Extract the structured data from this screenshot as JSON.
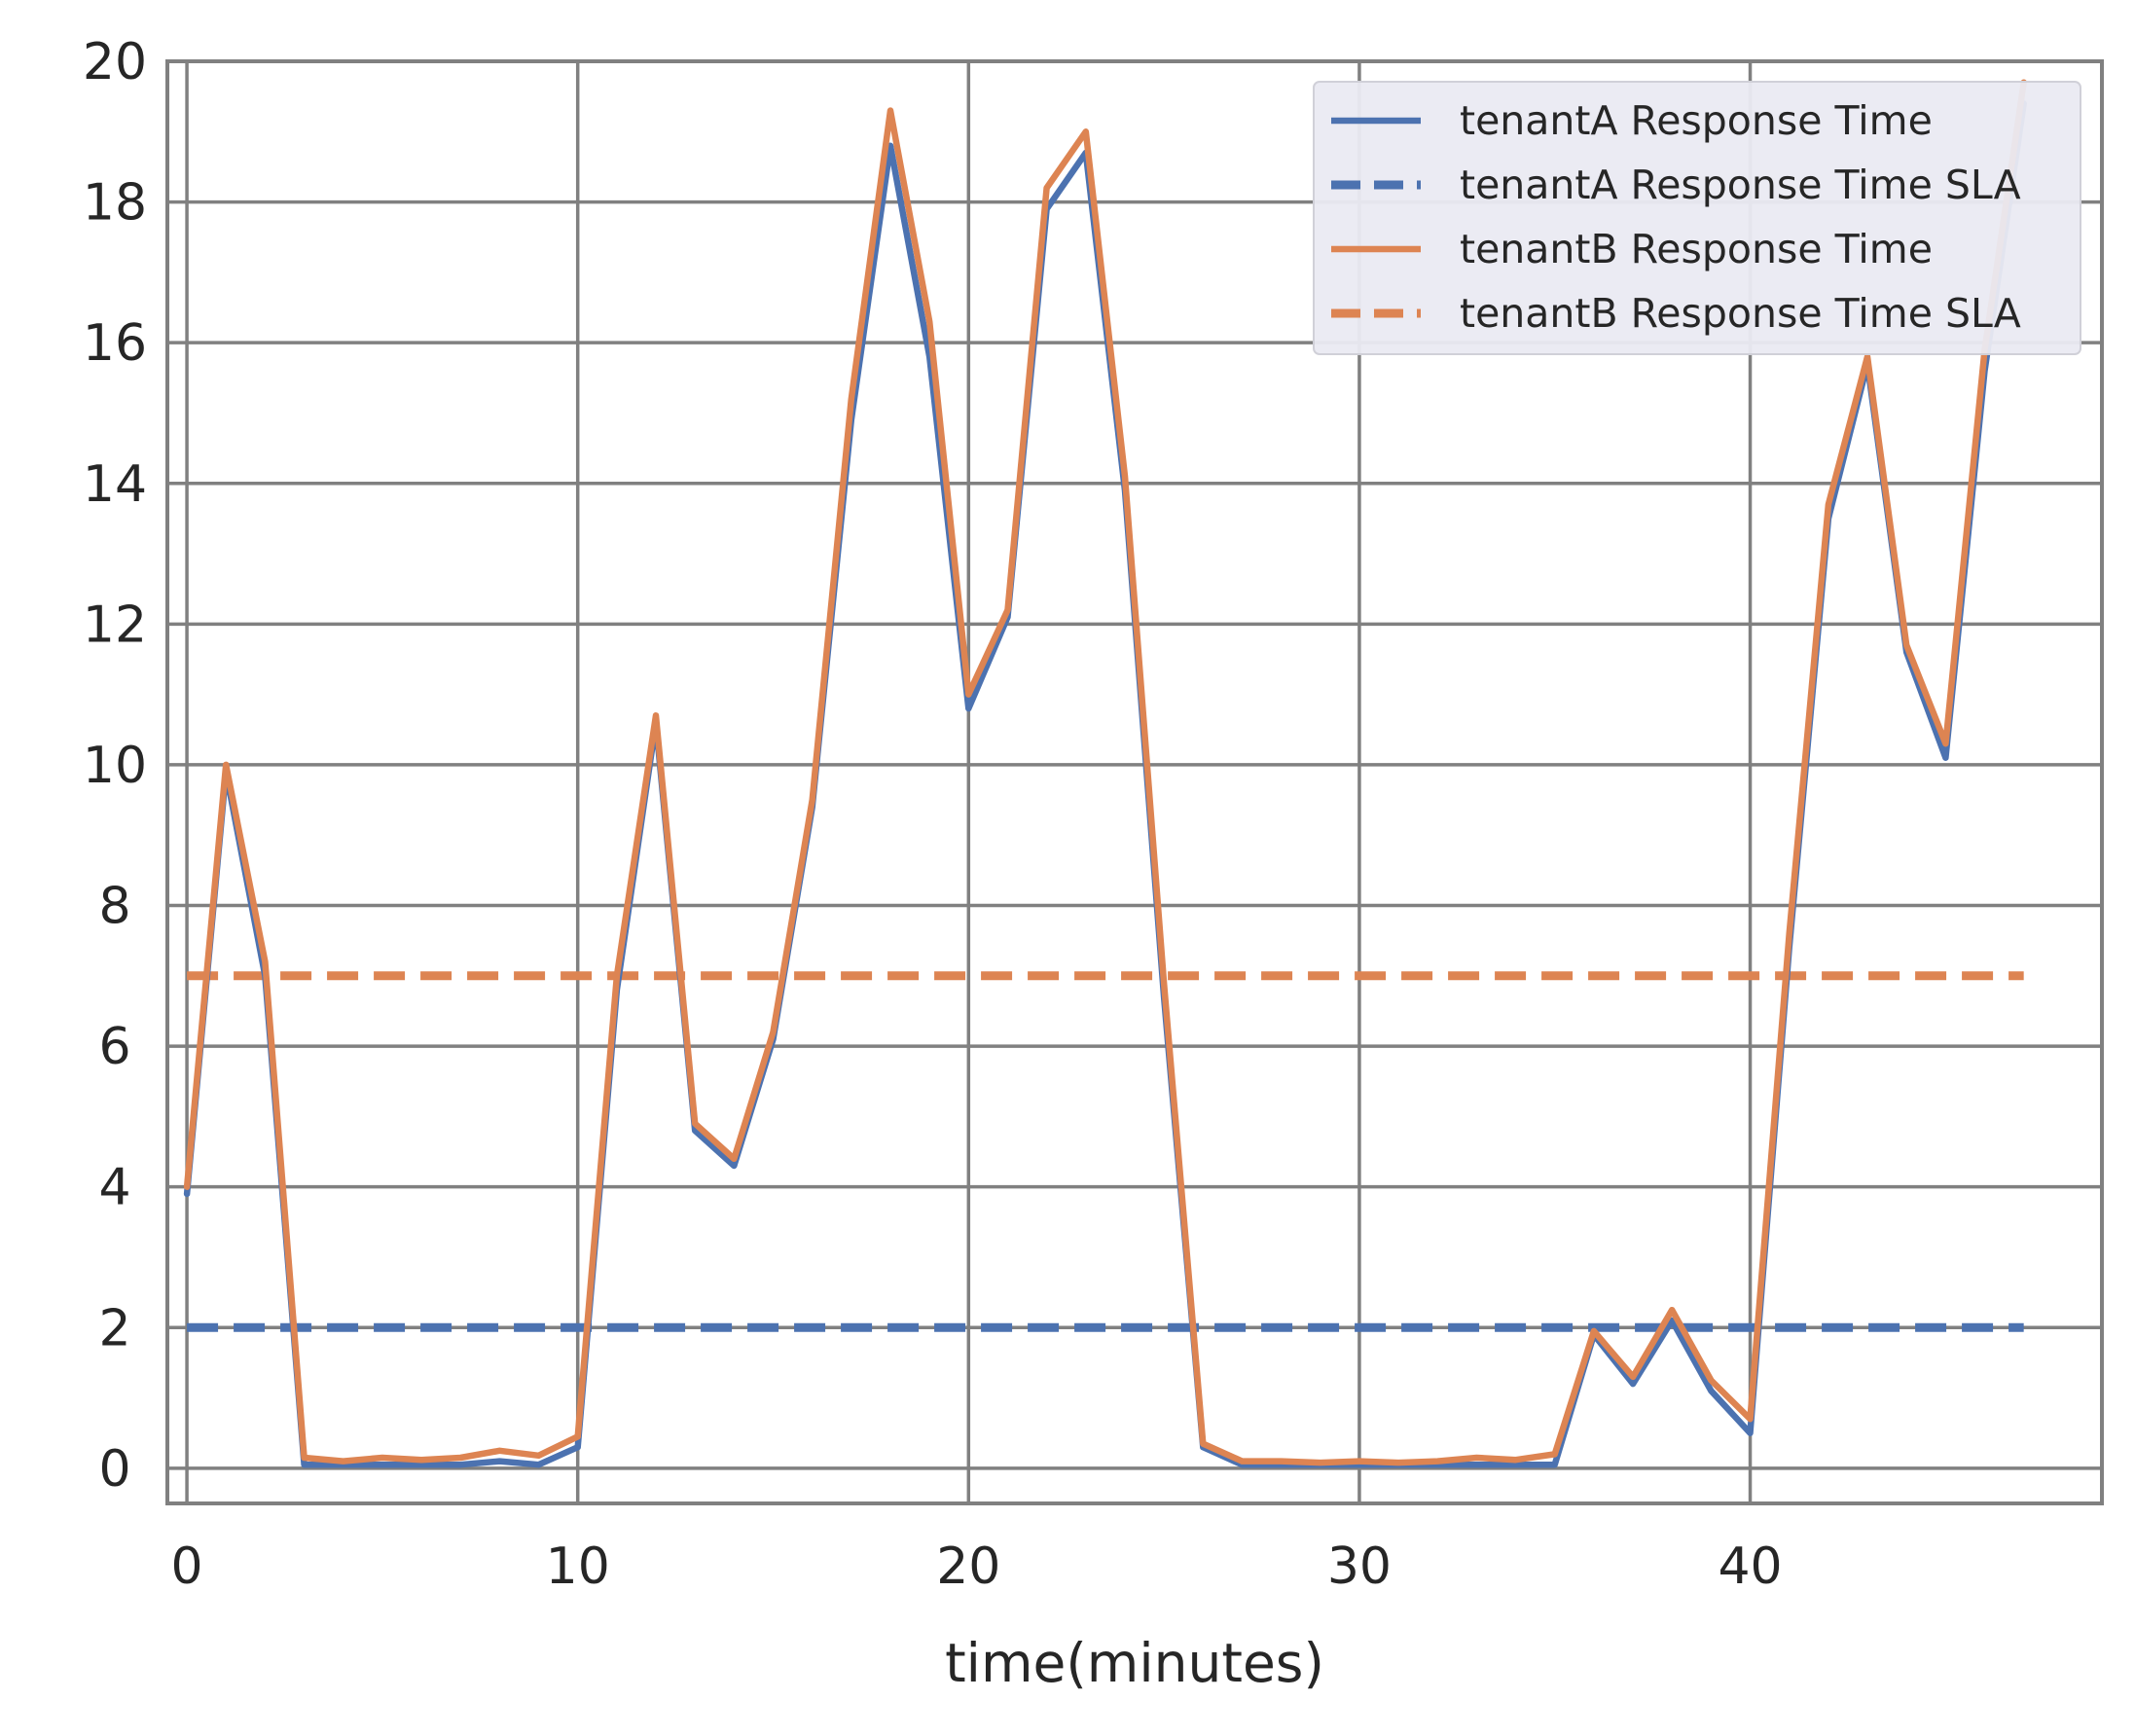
{
  "chart_data": {
    "type": "line",
    "title": "",
    "xlabel": "time(minutes)",
    "ylabel": "",
    "xlim": [
      -0.5,
      49
    ],
    "ylim": [
      -0.5,
      20
    ],
    "xticks": [
      0,
      10,
      20,
      30,
      40
    ],
    "yticks": [
      0,
      2,
      4,
      6,
      8,
      10,
      12,
      14,
      16,
      18,
      20
    ],
    "grid": true,
    "legend_position": "top-right",
    "x": [
      0,
      1,
      2,
      3,
      4,
      5,
      6,
      7,
      8,
      9,
      10,
      11,
      12,
      13,
      14,
      15,
      16,
      17,
      18,
      19,
      20,
      21,
      22,
      23,
      24,
      25,
      26,
      27,
      28,
      29,
      30,
      31,
      32,
      33,
      34,
      35,
      36,
      37,
      38,
      39,
      40,
      41,
      42,
      43,
      44,
      45,
      46,
      47
    ],
    "series": [
      {
        "name": "tenantA Response Time",
        "color": "#4c72b0",
        "style": "solid",
        "values": [
          3.9,
          9.9,
          7.0,
          0.05,
          0.05,
          0.05,
          0.05,
          0.05,
          0.1,
          0.05,
          0.3,
          6.8,
          10.6,
          4.8,
          4.3,
          6.1,
          9.4,
          14.9,
          18.8,
          15.8,
          10.8,
          12.1,
          17.9,
          18.7,
          13.9,
          6.7,
          0.3,
          0.05,
          0.05,
          0.05,
          0.05,
          0.05,
          0.05,
          0.05,
          0.05,
          0.05,
          1.9,
          1.2,
          2.1,
          1.1,
          0.5,
          7.4,
          13.5,
          15.7,
          11.6,
          10.1,
          15.6,
          19.4
        ]
      },
      {
        "name": "tenantA Response Time SLA",
        "color": "#4c72b0",
        "style": "dashed",
        "constant": 2
      },
      {
        "name": "tenantB Response Time",
        "color": "#dd8452",
        "style": "solid",
        "values": [
          4.0,
          10.0,
          7.2,
          0.15,
          0.1,
          0.15,
          0.12,
          0.15,
          0.25,
          0.18,
          0.45,
          7.0,
          10.7,
          4.9,
          4.4,
          6.2,
          9.5,
          15.2,
          19.3,
          16.3,
          11.0,
          12.2,
          18.2,
          19.0,
          14.1,
          6.9,
          0.35,
          0.1,
          0.1,
          0.08,
          0.1,
          0.08,
          0.1,
          0.15,
          0.12,
          0.2,
          1.95,
          1.3,
          2.25,
          1.25,
          0.7,
          7.6,
          13.7,
          15.8,
          11.7,
          10.3,
          15.9,
          19.7
        ]
      },
      {
        "name": "tenantB Response Time SLA",
        "color": "#dd8452",
        "style": "dashed",
        "constant": 7
      }
    ]
  }
}
